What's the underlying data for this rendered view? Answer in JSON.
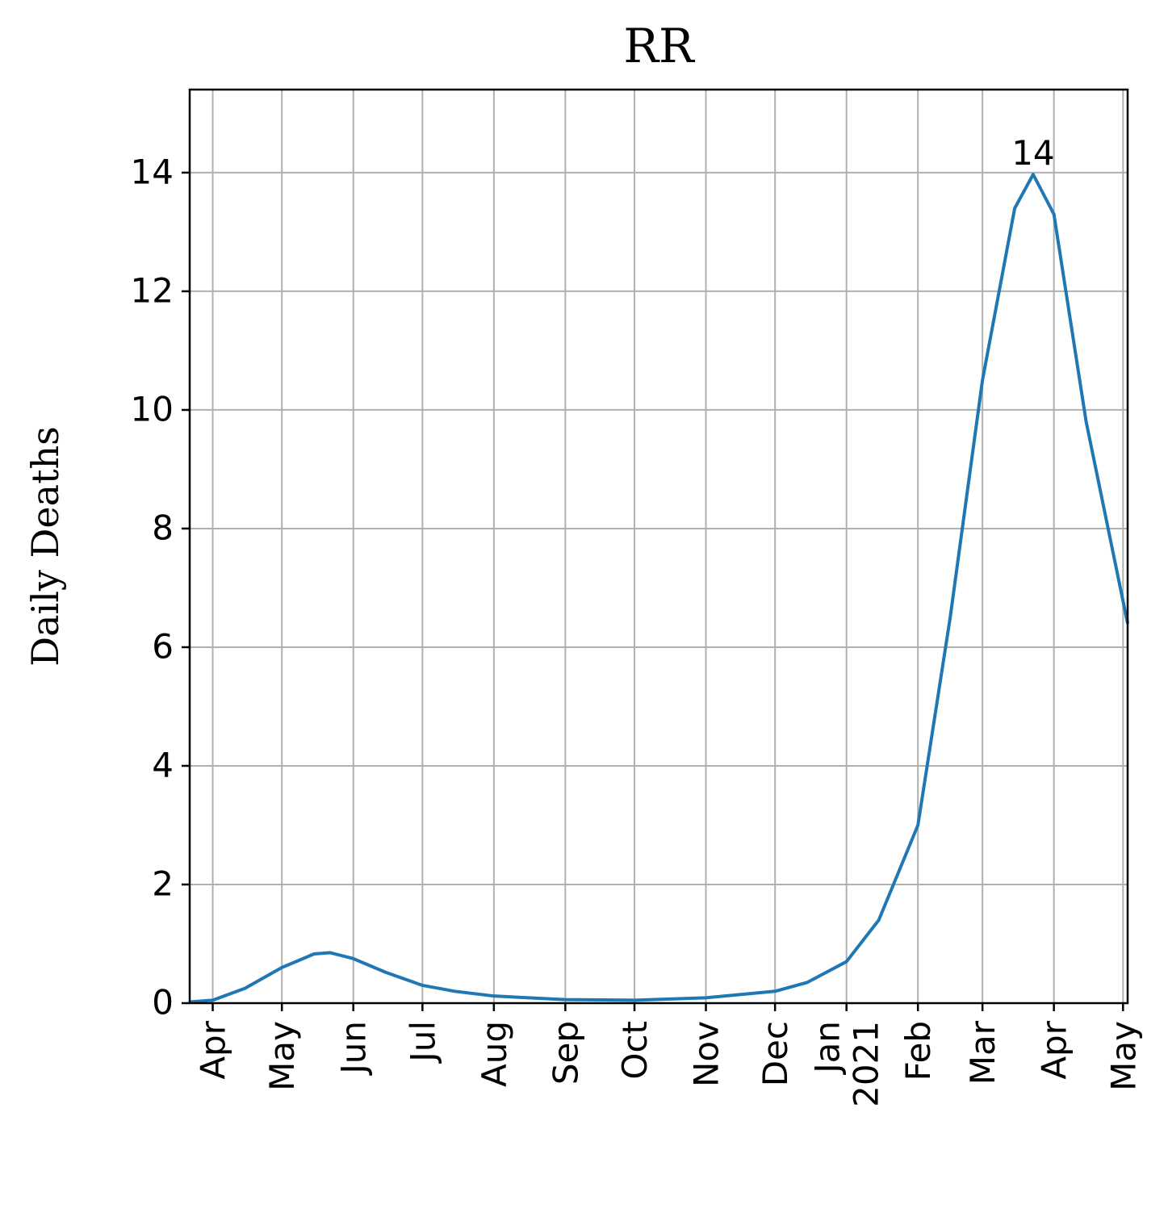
{
  "chart_data": {
    "type": "line",
    "title": "RR",
    "ylabel": "Daily Deaths",
    "x": [
      "2020-03-22",
      "2020-04-01",
      "2020-04-15",
      "2020-05-01",
      "2020-05-15",
      "2020-05-22",
      "2020-06-01",
      "2020-06-15",
      "2020-07-01",
      "2020-07-15",
      "2020-08-01",
      "2020-09-01",
      "2020-10-01",
      "2020-11-01",
      "2020-12-01",
      "2020-12-15",
      "2021-01-01",
      "2021-01-15",
      "2021-02-01",
      "2021-02-15",
      "2021-03-01",
      "2021-03-15",
      "2021-03-23",
      "2021-04-01",
      "2021-04-15",
      "2021-05-03"
    ],
    "series": [
      {
        "color": "#1f77b4",
        "values": [
          0.02,
          0.05,
          0.25,
          0.6,
          0.83,
          0.85,
          0.75,
          0.52,
          0.3,
          0.2,
          0.12,
          0.06,
          0.05,
          0.09,
          0.2,
          0.35,
          0.7,
          1.4,
          3.0,
          6.5,
          10.5,
          13.4,
          13.97,
          13.3,
          9.8,
          6.4
        ]
      }
    ],
    "annotations": [
      {
        "text": "14",
        "x": "2021-03-23",
        "y": 13.97
      }
    ],
    "xlim": [
      "2020-03-22",
      "2021-05-03"
    ],
    "xticks": [
      {
        "value": "2020-04-01",
        "label": "Apr"
      },
      {
        "value": "2020-05-01",
        "label": "May"
      },
      {
        "value": "2020-06-01",
        "label": "Jun"
      },
      {
        "value": "2020-07-01",
        "label": "Jul"
      },
      {
        "value": "2020-08-01",
        "label": "Aug"
      },
      {
        "value": "2020-09-01",
        "label": "Sep"
      },
      {
        "value": "2020-10-01",
        "label": "Oct"
      },
      {
        "value": "2020-11-01",
        "label": "Nov"
      },
      {
        "value": "2020-12-01",
        "label": "Dec"
      },
      {
        "value": "2021-01-01",
        "label": "Jan\n2021"
      },
      {
        "value": "2021-02-01",
        "label": "Feb"
      },
      {
        "value": "2021-03-01",
        "label": "Mar"
      },
      {
        "value": "2021-04-01",
        "label": "Apr"
      },
      {
        "value": "2021-05-01",
        "label": "May"
      }
    ],
    "ylim": [
      0,
      15.4
    ],
    "yticks": [
      0,
      2,
      4,
      6,
      8,
      10,
      12,
      14
    ],
    "grid": true
  }
}
